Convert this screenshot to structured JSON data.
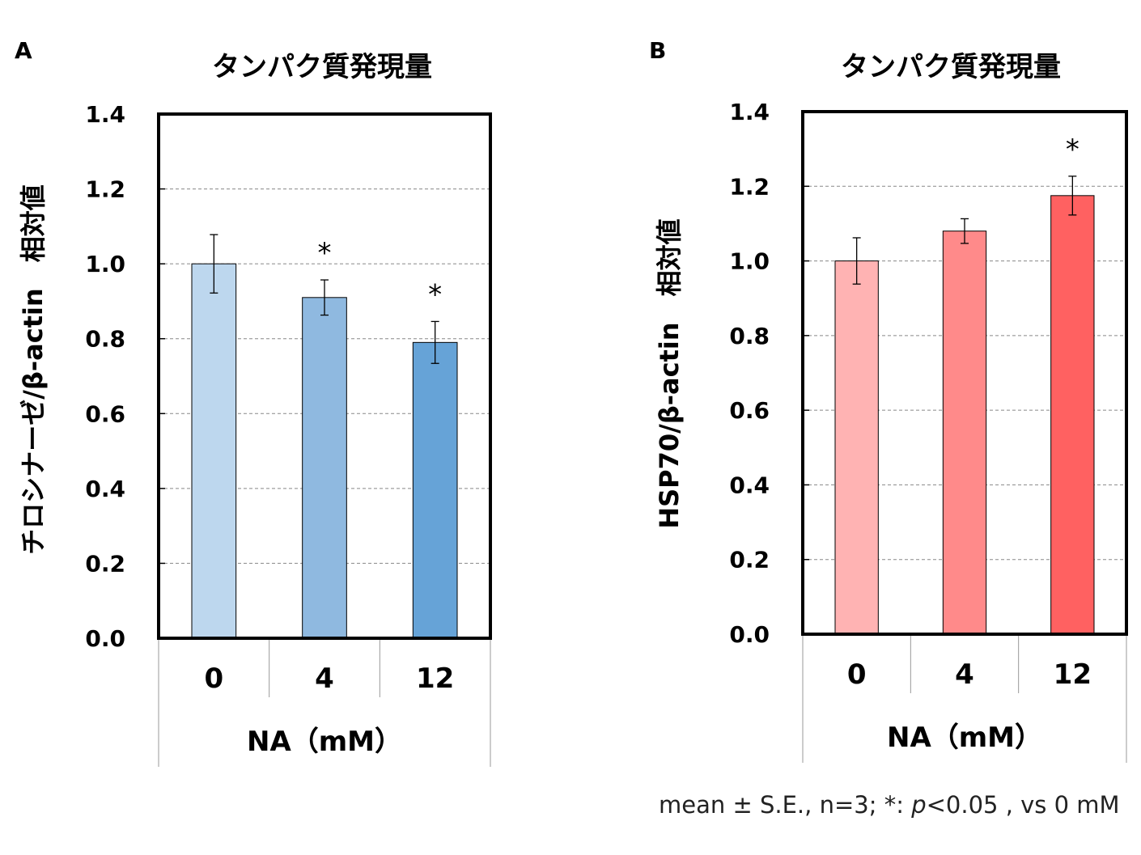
{
  "chart_data": [
    {
      "type": "bar",
      "panel_label": "A",
      "title": "タンパク質発現量",
      "ylabel": "チロシナーゼ/β-actin　相対値",
      "xlabel": "NA（mM）",
      "categories": [
        "0",
        "4",
        "12"
      ],
      "values": [
        1.0,
        0.91,
        0.79
      ],
      "errors": [
        0.078,
        0.047,
        0.056
      ],
      "significance": [
        "",
        "*",
        "*"
      ],
      "colors": [
        "#BDD7EE",
        "#8FB9E0",
        "#66A3D7"
      ],
      "ylim": [
        0,
        1.4
      ],
      "yticks": [
        "0.0",
        "0.2",
        "0.4",
        "0.6",
        "0.8",
        "1.0",
        "1.2",
        "1.4"
      ],
      "grid": true
    },
    {
      "type": "bar",
      "panel_label": "B",
      "title": "タンパク質発現量",
      "ylabel": "HSP70/β-actin　相対値",
      "xlabel": "NA（mM）",
      "categories": [
        "0",
        "4",
        "12"
      ],
      "values": [
        1.0,
        1.08,
        1.175
      ],
      "errors": [
        0.062,
        0.033,
        0.052
      ],
      "significance": [
        "",
        "",
        "*"
      ],
      "colors": [
        "#FFB3B3",
        "#FF8A8A",
        "#FF6161"
      ],
      "ylim": [
        0,
        1.4
      ],
      "yticks": [
        "0.0",
        "0.2",
        "0.4",
        "0.6",
        "0.8",
        "1.0",
        "1.2",
        "1.4"
      ],
      "grid": true
    }
  ],
  "footnote": {
    "prefix": "mean ± S.E., n=3; *: ",
    "p": "p",
    "suffix": "<0.05 , vs 0 mM"
  }
}
